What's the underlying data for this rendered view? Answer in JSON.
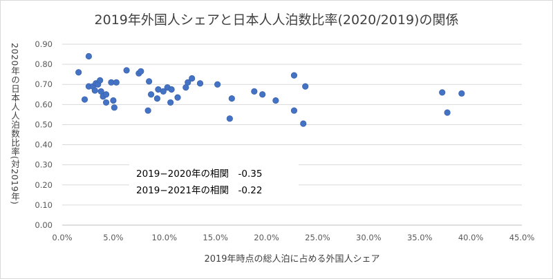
{
  "chart_data": {
    "type": "scatter",
    "title": "2019年外国人シェアと日本人人泊数比率(2020/2019)の関係",
    "xlabel": "2019年時点の総人泊に占める外国人シェア",
    "ylabel": "2020年の日本人人泊数比率(対2019年)",
    "xlim": [
      0,
      0.45
    ],
    "ylim": [
      0,
      0.9
    ],
    "x_ticks": [
      "0.0%",
      "5.0%",
      "10.0%",
      "15.0%",
      "20.0%",
      "25.0%",
      "30.0%",
      "35.0%",
      "40.0%",
      "45.0%"
    ],
    "y_ticks": [
      "0.00",
      "0.10",
      "0.20",
      "0.30",
      "0.40",
      "0.50",
      "0.60",
      "0.70",
      "0.80",
      "0.90"
    ],
    "grid": "horizontal",
    "marker_color": "#4472C4",
    "points": [
      {
        "x": 0.016,
        "y": 0.76
      },
      {
        "x": 0.022,
        "y": 0.625
      },
      {
        "x": 0.026,
        "y": 0.84
      },
      {
        "x": 0.026,
        "y": 0.69
      },
      {
        "x": 0.03,
        "y": 0.69
      },
      {
        "x": 0.032,
        "y": 0.67
      },
      {
        "x": 0.033,
        "y": 0.705
      },
      {
        "x": 0.035,
        "y": 0.7
      },
      {
        "x": 0.037,
        "y": 0.72
      },
      {
        "x": 0.038,
        "y": 0.665
      },
      {
        "x": 0.04,
        "y": 0.64
      },
      {
        "x": 0.043,
        "y": 0.65
      },
      {
        "x": 0.043,
        "y": 0.61
      },
      {
        "x": 0.048,
        "y": 0.71
      },
      {
        "x": 0.05,
        "y": 0.62
      },
      {
        "x": 0.051,
        "y": 0.585
      },
      {
        "x": 0.053,
        "y": 0.71
      },
      {
        "x": 0.063,
        "y": 0.77
      },
      {
        "x": 0.075,
        "y": 0.755
      },
      {
        "x": 0.077,
        "y": 0.765
      },
      {
        "x": 0.084,
        "y": 0.57
      },
      {
        "x": 0.085,
        "y": 0.715
      },
      {
        "x": 0.087,
        "y": 0.65
      },
      {
        "x": 0.093,
        "y": 0.63
      },
      {
        "x": 0.094,
        "y": 0.675
      },
      {
        "x": 0.099,
        "y": 0.665
      },
      {
        "x": 0.103,
        "y": 0.685
      },
      {
        "x": 0.106,
        "y": 0.61
      },
      {
        "x": 0.107,
        "y": 0.675
      },
      {
        "x": 0.113,
        "y": 0.635
      },
      {
        "x": 0.121,
        "y": 0.685
      },
      {
        "x": 0.123,
        "y": 0.71
      },
      {
        "x": 0.127,
        "y": 0.73
      },
      {
        "x": 0.135,
        "y": 0.705
      },
      {
        "x": 0.152,
        "y": 0.7
      },
      {
        "x": 0.164,
        "y": 0.53
      },
      {
        "x": 0.166,
        "y": 0.63
      },
      {
        "x": 0.188,
        "y": 0.665
      },
      {
        "x": 0.196,
        "y": 0.65
      },
      {
        "x": 0.209,
        "y": 0.62
      },
      {
        "x": 0.227,
        "y": 0.745
      },
      {
        "x": 0.227,
        "y": 0.57
      },
      {
        "x": 0.236,
        "y": 0.505
      },
      {
        "x": 0.238,
        "y": 0.69
      },
      {
        "x": 0.372,
        "y": 0.66
      },
      {
        "x": 0.377,
        "y": 0.56
      },
      {
        "x": 0.391,
        "y": 0.655
      }
    ],
    "annotations": [
      "2019−2020年の相関　-0.35",
      "2019−2021年の相関　-0.22"
    ]
  }
}
